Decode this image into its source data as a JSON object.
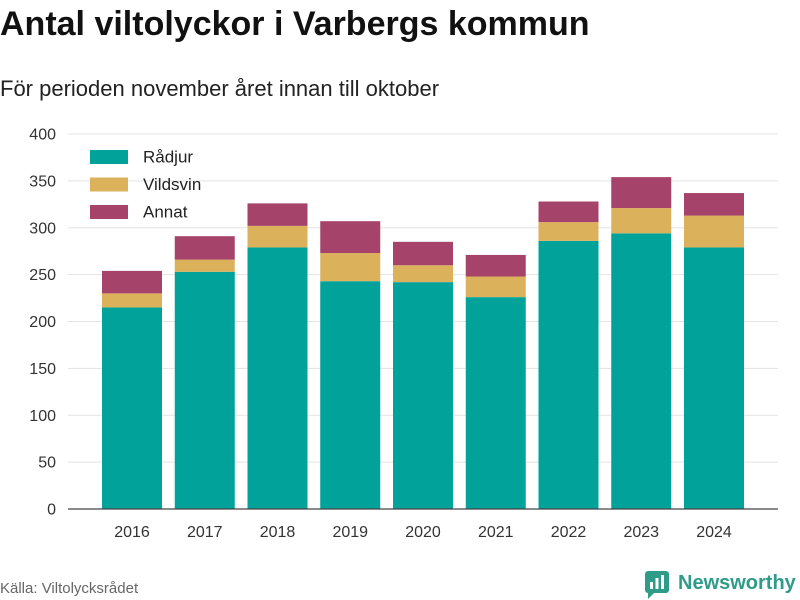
{
  "chart_data": {
    "type": "bar",
    "stacked": true,
    "title": "Antal viltolyckor i Varbergs kommun",
    "subtitle": "För perioden november året innan till oktober",
    "categories": [
      "2016",
      "2017",
      "2018",
      "2019",
      "2020",
      "2021",
      "2022",
      "2023",
      "2024"
    ],
    "series": [
      {
        "name": "Rådjur",
        "color": "#00a299",
        "values": [
          215,
          253,
          279,
          243,
          242,
          226,
          286,
          294,
          279
        ]
      },
      {
        "name": "Vildsvin",
        "color": "#dbb15c",
        "values": [
          15,
          13,
          23,
          30,
          18,
          22,
          20,
          27,
          34
        ]
      },
      {
        "name": "Annat",
        "color": "#a6436b",
        "values": [
          24,
          25,
          24,
          34,
          25,
          23,
          22,
          33,
          24
        ]
      }
    ],
    "ylim": [
      0,
      400
    ],
    "y_ticks": [
      0,
      50,
      100,
      150,
      200,
      250,
      300,
      350,
      400
    ],
    "grid": true,
    "legend_position": "top-left"
  },
  "footer": {
    "source": "Källa: Viltolycksrådet",
    "logo_text": "Newsworthy",
    "logo_icon": "bar-chart-icon"
  },
  "colors": {
    "logo": "#2f9c8a",
    "grid": "#e3e3e3",
    "axis": "#444444"
  }
}
